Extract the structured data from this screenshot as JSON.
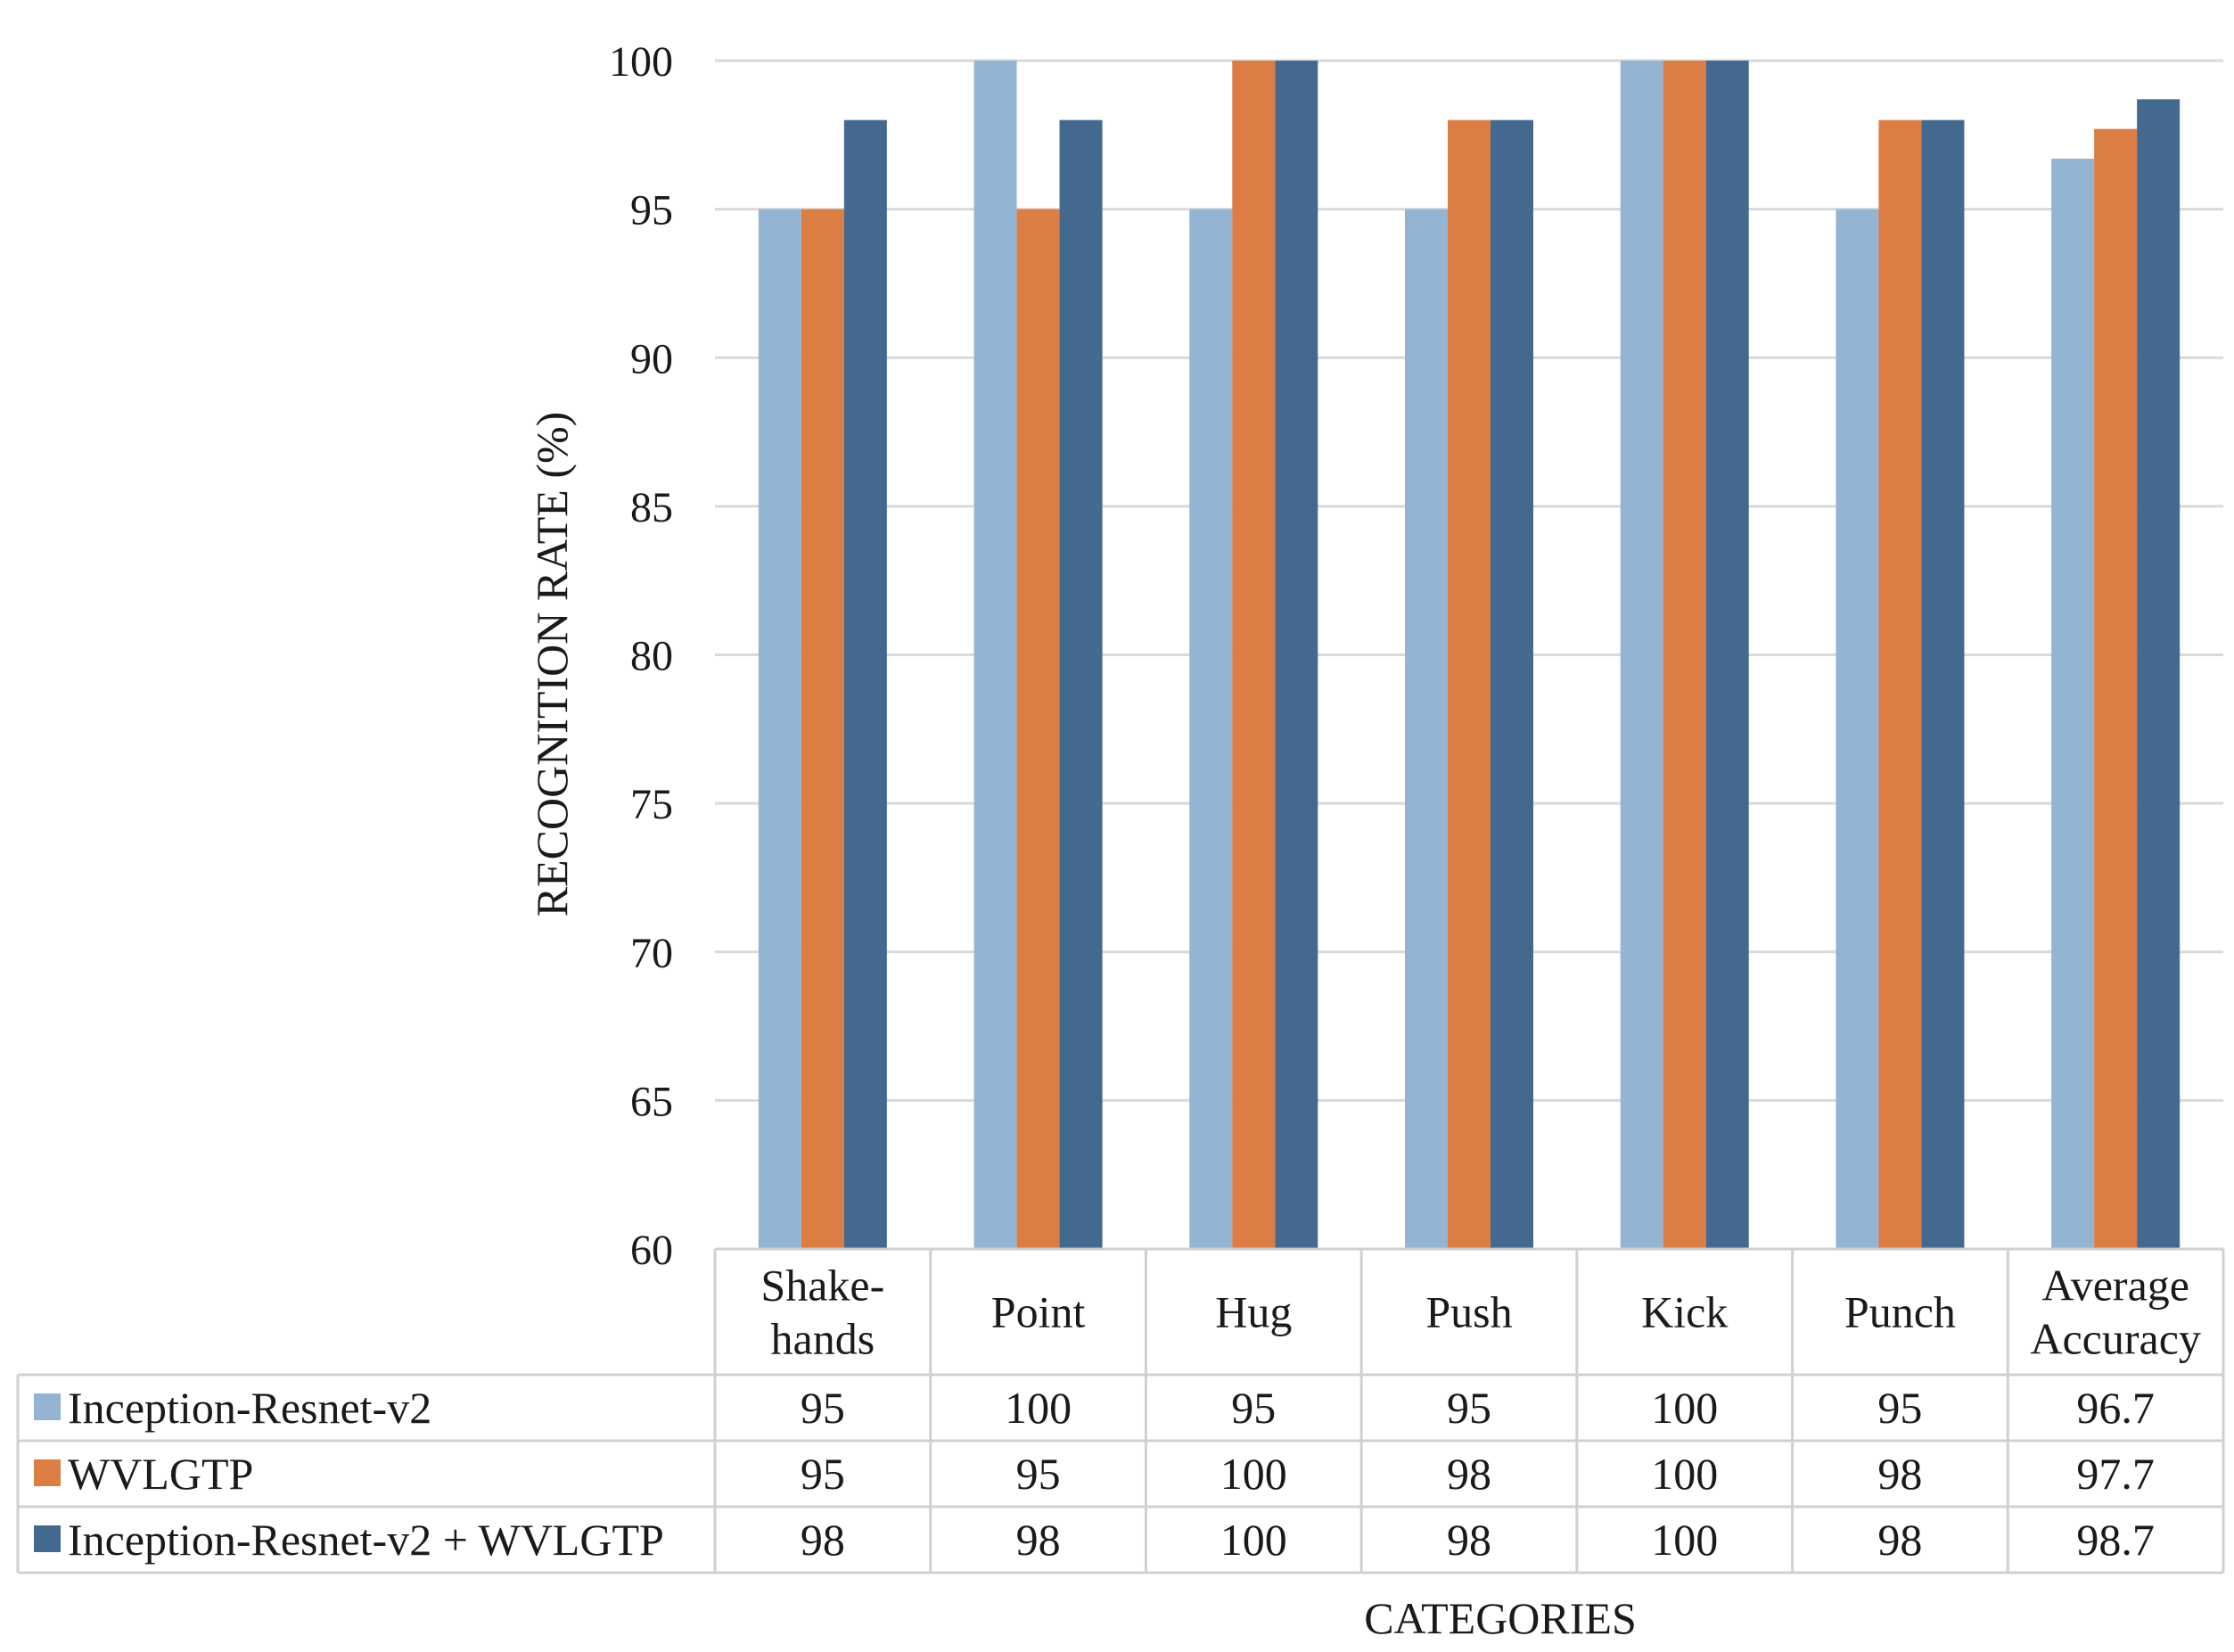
{
  "chart_data": {
    "type": "bar",
    "title": "",
    "xlabel": "CATEGORIES",
    "ylabel": "RECOGNITION RATE (%)",
    "ylim": [
      60,
      100
    ],
    "yticks": [
      60,
      65,
      70,
      75,
      80,
      85,
      90,
      95,
      100
    ],
    "grid": true,
    "legend": "data-table-left",
    "categories": [
      [
        "Shake-",
        "hands"
      ],
      [
        "Point"
      ],
      [
        "Hug"
      ],
      [
        "Push"
      ],
      [
        "Kick"
      ],
      [
        "Punch"
      ],
      [
        "Average",
        "Accuracy"
      ]
    ],
    "series": [
      {
        "name": "Inception-Resnet-v2",
        "color": "#94b4d4",
        "values": [
          95,
          100,
          95,
          95,
          100,
          95,
          96.7
        ],
        "labels": [
          "95",
          "100",
          "95",
          "95",
          "100",
          "95",
          "96.7"
        ]
      },
      {
        "name": "WVLGTP",
        "color": "#dc7d44",
        "values": [
          95,
          95,
          100,
          98,
          100,
          98,
          97.7
        ],
        "labels": [
          "95",
          "95",
          "100",
          "98",
          "100",
          "98",
          "97.7"
        ]
      },
      {
        "name": "Inception-Resnet-v2 + WVLGTP",
        "color": "#44698f",
        "values": [
          98,
          98,
          100,
          98,
          100,
          98,
          98.7
        ],
        "labels": [
          "98",
          "98",
          "100",
          "98",
          "100",
          "98",
          "98.7"
        ]
      }
    ]
  }
}
